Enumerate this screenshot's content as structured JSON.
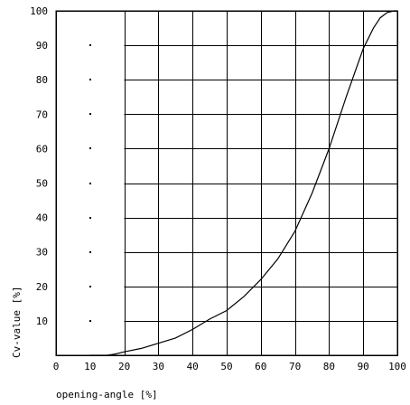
{
  "chart_data": {
    "type": "line",
    "xlabel": "opening-angle [%]",
    "ylabel": "Cv-value [%]",
    "xlim": [
      0,
      100
    ],
    "ylim": [
      0,
      100
    ],
    "x_ticks": [
      "0",
      "10",
      "20",
      "30",
      "40",
      "50",
      "60",
      "70",
      "80",
      "90",
      "100"
    ],
    "y_ticks": [
      "10",
      "20",
      "30",
      "40",
      "50",
      "60",
      "70",
      "80",
      "90",
      "100"
    ],
    "grid": true,
    "series": [
      {
        "x": [
          10,
          15,
          17,
          20,
          25,
          30,
          35,
          40,
          45,
          50,
          55,
          60,
          65,
          70,
          75,
          80,
          85,
          90,
          93,
          95,
          97,
          99,
          100
        ],
        "y": [
          0,
          0,
          0.3,
          1,
          2,
          3.5,
          5,
          7.5,
          10.5,
          13,
          17,
          22,
          28,
          36,
          47,
          60,
          75,
          89,
          95,
          98,
          99.5,
          100,
          100
        ]
      }
    ]
  }
}
